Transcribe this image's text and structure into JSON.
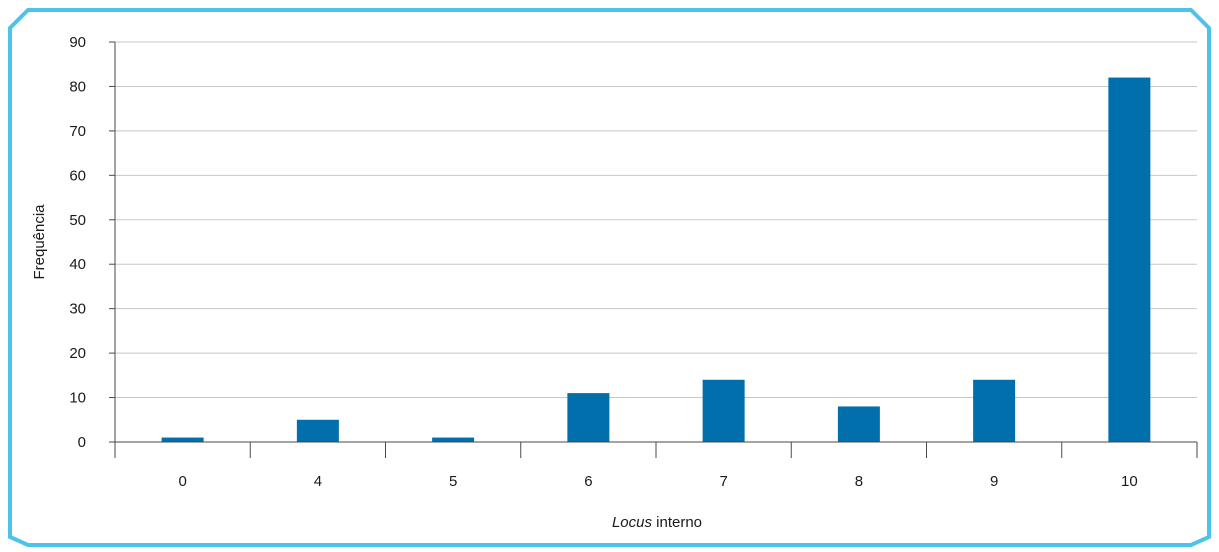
{
  "colors": {
    "frame": "#4dc3ec",
    "bar": "#006fac",
    "grid": "#c8c8c8",
    "axis": "#4a4a4a",
    "text": "#1a1a1a"
  },
  "chart_data": {
    "type": "bar",
    "title": "",
    "xlabel_italic": "Locus",
    "xlabel_rest": " interno",
    "ylabel": "Frequência",
    "categories": [
      "0",
      "4",
      "5",
      "6",
      "7",
      "8",
      "9",
      "10"
    ],
    "values": [
      1,
      5,
      1,
      11,
      14,
      8,
      14,
      82
    ],
    "ylim": [
      0,
      90
    ],
    "yticks": [
      0,
      10,
      20,
      30,
      40,
      50,
      60,
      70,
      80,
      90
    ],
    "grid": true,
    "legend": "none"
  }
}
